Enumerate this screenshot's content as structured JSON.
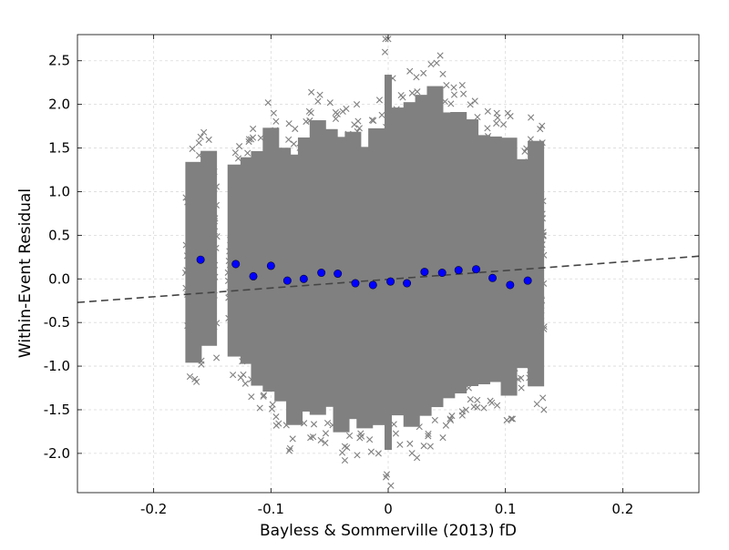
{
  "chart_data": {
    "type": "scatter",
    "title": "",
    "xlabel": "Bayless & Sommerville (2013) fD",
    "ylabel": "Within-Event Residual",
    "xlim": [
      -0.265,
      0.265
    ],
    "ylim": [
      -2.45,
      2.8
    ],
    "x_ticks": [
      -0.2,
      -0.1,
      0,
      0.1,
      0.2
    ],
    "x_tick_labels": [
      "-0.2",
      "-0.1",
      "0",
      "0.1",
      "0.2"
    ],
    "y_ticks": [
      -2.0,
      -1.5,
      -1.0,
      -0.5,
      0.0,
      0.5,
      1.0,
      1.5,
      2.0,
      2.5
    ],
    "y_tick_labels": [
      "-2.0",
      "-1.5",
      "-1.0",
      "-0.5",
      "0.0",
      "0.5",
      "1.0",
      "1.5",
      "2.0",
      "2.5"
    ],
    "grid": true,
    "colors": {
      "residuals": "#808080",
      "binned_means": "#0000ff",
      "trend": "#444444",
      "grid": "#d9d9d9"
    },
    "series": [
      {
        "role": "residuals",
        "marker": "x",
        "columns": [
          {
            "x": -0.166,
            "ymin": -1.18,
            "ymax": 1.56
          },
          {
            "x": -0.153,
            "ymin": -0.98,
            "ymax": 1.68
          },
          {
            "x": -0.13,
            "ymin": -1.1,
            "ymax": 1.52
          },
          {
            "x": -0.119,
            "ymin": -1.2,
            "ymax": 1.62
          },
          {
            "x": -0.11,
            "ymin": -1.48,
            "ymax": 1.72
          },
          {
            "x": -0.1,
            "ymin": -1.58,
            "ymax": 2.02
          },
          {
            "x": -0.09,
            "ymin": -1.68,
            "ymax": 1.78
          },
          {
            "x": -0.08,
            "ymin": -1.97,
            "ymax": 1.72
          },
          {
            "x": -0.07,
            "ymin": -1.82,
            "ymax": 1.92
          },
          {
            "x": -0.06,
            "ymin": -1.88,
            "ymax": 2.14
          },
          {
            "x": -0.05,
            "ymin": -1.77,
            "ymax": 2.02
          },
          {
            "x": -0.04,
            "ymin": -2.08,
            "ymax": 1.95
          },
          {
            "x": -0.03,
            "ymin": -1.92,
            "ymax": 2.0
          },
          {
            "x": -0.02,
            "ymin": -2.02,
            "ymax": 1.82
          },
          {
            "x": -0.01,
            "ymin": -2.0,
            "ymax": 2.05
          },
          {
            "x": 0.0,
            "ymin": -2.37,
            "ymax": 2.75
          },
          {
            "x": 0.01,
            "ymin": -1.9,
            "ymax": 2.3
          },
          {
            "x": 0.02,
            "ymin": -2.05,
            "ymax": 2.38
          },
          {
            "x": 0.03,
            "ymin": -1.92,
            "ymax": 2.46
          },
          {
            "x": 0.04,
            "ymin": -1.82,
            "ymax": 2.56
          },
          {
            "x": 0.05,
            "ymin": -1.68,
            "ymax": 2.22
          },
          {
            "x": 0.06,
            "ymin": -1.62,
            "ymax": 2.22
          },
          {
            "x": 0.07,
            "ymin": -1.52,
            "ymax": 2.12
          },
          {
            "x": 0.08,
            "ymin": -1.48,
            "ymax": 1.92
          },
          {
            "x": 0.09,
            "ymin": -1.45,
            "ymax": 1.9
          },
          {
            "x": 0.103,
            "ymin": -1.62,
            "ymax": 1.9
          },
          {
            "x": 0.115,
            "ymin": -1.25,
            "ymax": 1.6
          },
          {
            "x": 0.126,
            "ymin": -1.5,
            "ymax": 1.85
          }
        ]
      },
      {
        "role": "binned_means",
        "marker": "circle",
        "points": [
          {
            "x": -0.16,
            "y": 0.22
          },
          {
            "x": -0.13,
            "y": 0.17
          },
          {
            "x": -0.115,
            "y": 0.03
          },
          {
            "x": -0.1,
            "y": 0.15
          },
          {
            "x": -0.086,
            "y": -0.02
          },
          {
            "x": -0.072,
            "y": 0.0
          },
          {
            "x": -0.057,
            "y": 0.07
          },
          {
            "x": -0.043,
            "y": 0.06
          },
          {
            "x": -0.028,
            "y": -0.05
          },
          {
            "x": -0.013,
            "y": -0.07
          },
          {
            "x": 0.002,
            "y": -0.03
          },
          {
            "x": 0.016,
            "y": -0.05
          },
          {
            "x": 0.031,
            "y": 0.08
          },
          {
            "x": 0.046,
            "y": 0.07
          },
          {
            "x": 0.06,
            "y": 0.1
          },
          {
            "x": 0.075,
            "y": 0.11
          },
          {
            "x": 0.089,
            "y": 0.01
          },
          {
            "x": 0.104,
            "y": -0.07
          },
          {
            "x": 0.119,
            "y": -0.02
          }
        ]
      },
      {
        "role": "trend",
        "style": "dashed",
        "points": [
          {
            "x": -0.265,
            "y": -0.27
          },
          {
            "x": 0.265,
            "y": 0.26
          }
        ]
      }
    ]
  }
}
